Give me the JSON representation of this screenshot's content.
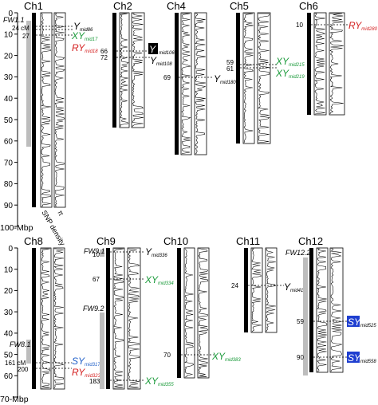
{
  "top_panel": {
    "axis_ticks": [
      "0",
      "10",
      "20",
      "30",
      "40",
      "50",
      "60",
      "70",
      "80",
      "90",
      "100"
    ],
    "axis_unit": "-Mbp",
    "column_labels": [
      "SNP density",
      "π"
    ],
    "chromosomes": [
      {
        "name": "Ch1",
        "left_markers": [
          "24 cM",
          "27"
        ],
        "region_labels": [
          "FW1.1"
        ],
        "markers": [
          {
            "prefix": "Y",
            "sub": "mid86",
            "color": "#000000"
          },
          {
            "prefix": "XY",
            "sub": "mid17",
            "color": "#1a9a3a"
          },
          {
            "prefix": "RY",
            "sub": "mid18",
            "color": "#d42020"
          }
        ]
      },
      {
        "name": "Ch2",
        "left_markers": [
          "66",
          "72"
        ],
        "region_labels": [],
        "markers": [
          {
            "prefix": "Y",
            "sub": "mid106",
            "color": "#ffffff",
            "boxed": "#000000"
          },
          {
            "prefix": "Y",
            "sub": "mid108",
            "color": "#000000"
          }
        ]
      },
      {
        "name": "Ch4",
        "left_markers": [
          "69"
        ],
        "region_labels": [],
        "markers": [
          {
            "prefix": "Y",
            "sub": "mid180",
            "color": "#000000"
          }
        ]
      },
      {
        "name": "Ch5",
        "left_markers": [
          "59",
          "61"
        ],
        "region_labels": [],
        "markers": [
          {
            "prefix": "XY",
            "sub": "mid215",
            "color": "#1a9a3a"
          },
          {
            "prefix": "XY",
            "sub": "mid219",
            "color": "#1a9a3a"
          }
        ]
      },
      {
        "name": "Ch6",
        "left_markers": [
          "10"
        ],
        "region_labels": [],
        "markers": [
          {
            "prefix": "RY",
            "sub": "mid280",
            "color": "#d42020"
          }
        ]
      }
    ]
  },
  "bottom_panel": {
    "axis_ticks": [
      "0",
      "10",
      "20",
      "30",
      "40",
      "50",
      "60",
      "70"
    ],
    "axis_unit": "-Mbp",
    "chromosomes": [
      {
        "name": "Ch8",
        "left_markers": [
          "161 cM",
          "200"
        ],
        "region_labels": [
          "FW8.1"
        ],
        "markers": [
          {
            "prefix": "SY",
            "sub": "mid317",
            "color": "#1f5fc8"
          },
          {
            "prefix": "RY",
            "sub": "mid323",
            "color": "#d42020"
          }
        ]
      },
      {
        "name": "Ch9",
        "left_markers": [
          "10",
          "67",
          "183"
        ],
        "region_labels": [
          "FW9.1",
          "FW9.2"
        ],
        "markers": [
          {
            "prefix": "Y",
            "sub": "mid336",
            "color": "#000000"
          },
          {
            "prefix": "XY",
            "sub": "mid334",
            "color": "#1a9a3a"
          },
          {
            "prefix": "XY",
            "sub": "mid355",
            "color": "#1a9a3a"
          }
        ]
      },
      {
        "name": "Ch10",
        "left_markers": [
          "70"
        ],
        "region_labels": [],
        "markers": [
          {
            "prefix": "XY",
            "sub": "mid383",
            "color": "#1a9a3a"
          }
        ]
      },
      {
        "name": "Ch11",
        "left_markers": [
          "24"
        ],
        "region_labels": [],
        "markers": [
          {
            "prefix": "Y",
            "sub": "mid415",
            "color": "#000000"
          }
        ]
      },
      {
        "name": "Ch12",
        "left_markers": [
          "59",
          "90"
        ],
        "region_labels": [
          "FW12.2"
        ],
        "markers": [
          {
            "prefix": "SY",
            "sub": "mid525",
            "color": "#ffffff",
            "boxed": "#1f3fd0"
          },
          {
            "prefix": "SY",
            "sub": "mid558",
            "color": "#ffffff",
            "boxed": "#1f3fd0"
          }
        ]
      }
    ]
  }
}
